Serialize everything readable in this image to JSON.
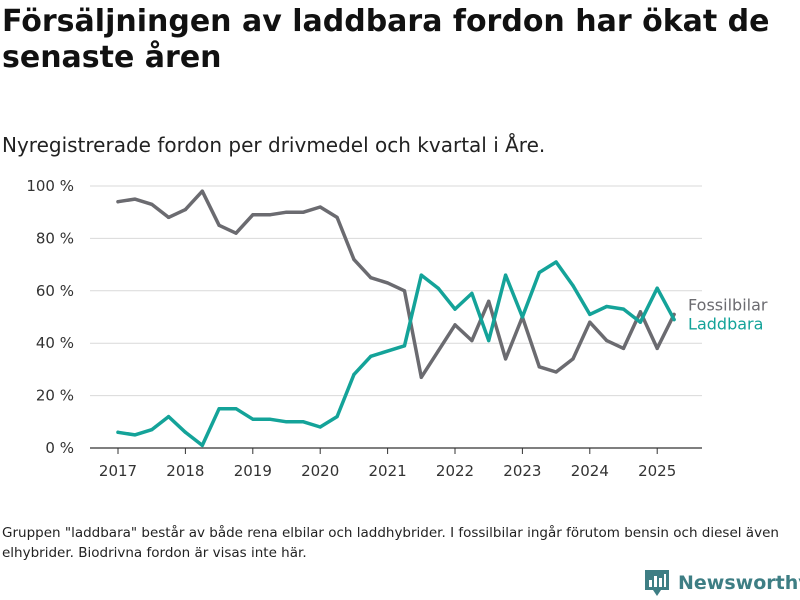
{
  "title": "Försäljningen av laddbara fordon har ökat de senaste åren",
  "subtitle": "Nyregistrerade fordon per drivmedel och kvartal i Åre.",
  "footnote": "Gruppen \"laddbara\" består av både rena elbilar och laddhybrider. I fossilbilar ingår förutom bensin och diesel även elhybrider. Biodrivna fordon är visas inte här.",
  "brand": {
    "name": "Newsworthy",
    "color": "#3e7e84",
    "icon": "bar-chart-logo-icon"
  },
  "chart_data": {
    "type": "line",
    "x": [
      "2017 Q1",
      "2017 Q2",
      "2017 Q3",
      "2017 Q4",
      "2018 Q1",
      "2018 Q2",
      "2018 Q3",
      "2018 Q4",
      "2019 Q1",
      "2019 Q2",
      "2019 Q3",
      "2019 Q4",
      "2020 Q1",
      "2020 Q2",
      "2020 Q3",
      "2020 Q4",
      "2021 Q1",
      "2021 Q2",
      "2021 Q3",
      "2021 Q4",
      "2022 Q1",
      "2022 Q2",
      "2022 Q3",
      "2022 Q4",
      "2023 Q1",
      "2023 Q2",
      "2023 Q3",
      "2023 Q4",
      "2024 Q1",
      "2024 Q2",
      "2024 Q3",
      "2024 Q4",
      "2025 Q1",
      "2025 Q2"
    ],
    "x_ticks": [
      "2017",
      "2018",
      "2019",
      "2020",
      "2021",
      "2022",
      "2023",
      "2024",
      "2025"
    ],
    "y_ticks": [
      "0 %",
      "20 %",
      "40 %",
      "60 %",
      "80 %",
      "100 %"
    ],
    "ylim": [
      0,
      100
    ],
    "grid": "horizontal",
    "legend": "end-of-line labels",
    "series": [
      {
        "name": "Fossilbilar",
        "color": "#6b6b70",
        "values": [
          94,
          95,
          93,
          88,
          91,
          98,
          85,
          82,
          89,
          89,
          90,
          90,
          92,
          88,
          72,
          65,
          63,
          60,
          27,
          37,
          47,
          41,
          56,
          34,
          50,
          31,
          29,
          34,
          48,
          41,
          38,
          52,
          38,
          51
        ]
      },
      {
        "name": "Laddbara",
        "color": "#14a399",
        "values": [
          6,
          5,
          7,
          12,
          6,
          1,
          15,
          15,
          11,
          11,
          10,
          10,
          8,
          12,
          28,
          35,
          37,
          39,
          66,
          61,
          53,
          59,
          41,
          66,
          50,
          67,
          71,
          62,
          51,
          54,
          53,
          48,
          61,
          49
        ]
      }
    ]
  }
}
